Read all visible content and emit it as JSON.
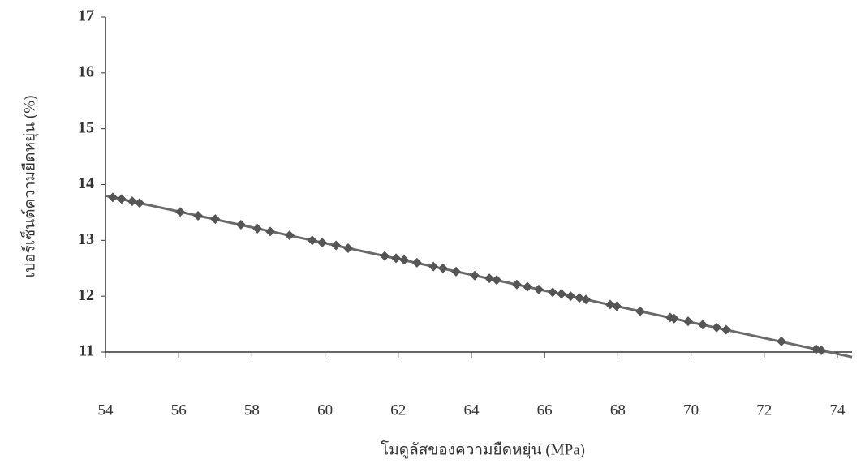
{
  "chart_data": {
    "type": "scatter",
    "x_label": "โมดูลัสของความยืดหยุ่น (MPa)",
    "y_label": "เปอร์เซ็นต์ความยืดหยุ่น (%)",
    "xlim": [
      54,
      74.4
    ],
    "ylim": [
      11,
      17
    ],
    "xticks": [
      54,
      56,
      58,
      60,
      62,
      64,
      66,
      68,
      70,
      72,
      74
    ],
    "yticks": [
      11,
      12,
      13,
      14,
      15,
      16,
      17
    ],
    "color": "#555555",
    "line_color": "#6a6a6a",
    "trendline": {
      "x": [
        54,
        74.4
      ],
      "y": [
        13.8,
        10.91
      ]
    },
    "x": [
      54.2,
      54.44,
      54.73,
      54.93,
      56.04,
      56.53,
      57.0,
      57.7,
      58.15,
      58.5,
      59.03,
      59.65,
      59.92,
      60.3,
      60.63,
      61.63,
      61.94,
      62.16,
      62.51,
      62.96,
      63.22,
      63.58,
      64.09,
      64.49,
      64.69,
      65.24,
      65.53,
      65.84,
      66.22,
      66.46,
      66.71,
      66.95,
      67.13,
      67.79,
      67.97,
      68.61,
      69.43,
      69.54,
      69.92,
      70.32,
      70.7,
      70.96,
      72.47,
      73.42,
      73.56
    ],
    "values": [
      13.77,
      13.74,
      13.7,
      13.67,
      13.51,
      13.44,
      13.38,
      13.28,
      13.21,
      13.16,
      13.09,
      13.0,
      12.96,
      12.91,
      12.86,
      12.72,
      12.68,
      12.65,
      12.6,
      12.53,
      12.5,
      12.44,
      12.37,
      12.32,
      12.29,
      12.21,
      12.17,
      12.12,
      12.07,
      12.04,
      12.0,
      11.97,
      11.94,
      11.85,
      11.82,
      11.73,
      11.62,
      11.6,
      11.55,
      11.49,
      11.44,
      11.4,
      11.19,
      11.05,
      11.03
    ]
  }
}
